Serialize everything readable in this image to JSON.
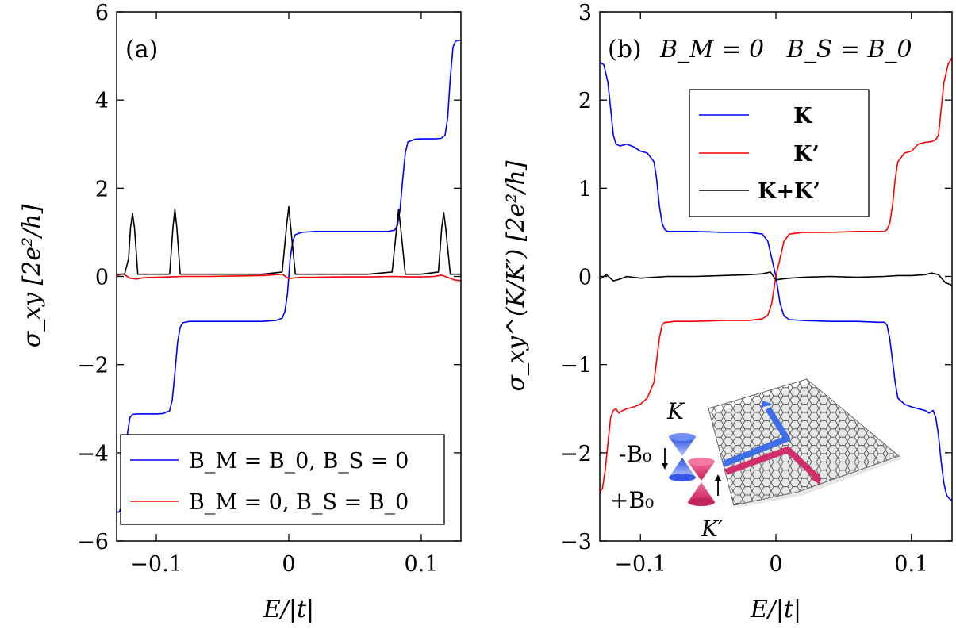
{
  "chart_data": [
    {
      "panel": "(a)",
      "type": "line",
      "title": "",
      "xlabel": "E/|t|",
      "ylabel": "σ_xy [2e²/h]",
      "xlim": [
        -0.13,
        0.13
      ],
      "ylim": [
        -6,
        6
      ],
      "xticks": [
        -0.1,
        0,
        0.1
      ],
      "xtick_labels": [
        "−0.1",
        "0",
        "0.1"
      ],
      "yticks": [
        -6,
        -4,
        -2,
        0,
        2,
        4,
        6
      ],
      "ytick_labels": [
        "−6",
        "−4",
        "−2",
        "0",
        "2",
        "4",
        "6"
      ],
      "grid": false,
      "legend_position": "bottom-right",
      "series": [
        {
          "name": "B_M = B_0, B_S = 0",
          "color": "#0000ff",
          "x": [
            -0.13,
            -0.128,
            -0.126,
            -0.124,
            -0.122,
            -0.12,
            -0.118,
            -0.115,
            -0.11,
            -0.105,
            -0.1,
            -0.095,
            -0.09,
            -0.088,
            -0.086,
            -0.084,
            -0.082,
            -0.08,
            -0.075,
            -0.06,
            -0.04,
            -0.02,
            -0.01,
            -0.005,
            -0.003,
            -0.001,
            0,
            0.001,
            0.003,
            0.005,
            0.01,
            0.02,
            0.04,
            0.06,
            0.075,
            0.08,
            0.082,
            0.084,
            0.086,
            0.088,
            0.09,
            0.095,
            0.1,
            0.105,
            0.11,
            0.115,
            0.118,
            0.12,
            0.122,
            0.124,
            0.126,
            0.128,
            0.13
          ],
          "y": [
            -5.35,
            -5.34,
            -5.2,
            -4.5,
            -3.6,
            -3.2,
            -3.13,
            -3.12,
            -3.12,
            -3.12,
            -3.12,
            -3.11,
            -3.05,
            -2.8,
            -2.2,
            -1.5,
            -1.15,
            -1.05,
            -1.02,
            -1.02,
            -1.02,
            -1.02,
            -1.0,
            -0.95,
            -0.8,
            -0.4,
            0.0,
            0.4,
            0.8,
            0.95,
            1.0,
            1.02,
            1.02,
            1.02,
            1.02,
            1.05,
            1.15,
            1.5,
            2.2,
            2.8,
            3.05,
            3.11,
            3.12,
            3.12,
            3.12,
            3.13,
            3.2,
            3.6,
            4.5,
            5.2,
            5.34,
            5.35,
            5.36
          ]
        },
        {
          "name": "B_M = 0, B_S = B_0",
          "color": "#ff0000",
          "x": [
            -0.13,
            -0.125,
            -0.12,
            -0.115,
            -0.11,
            -0.1,
            -0.09,
            -0.08,
            -0.06,
            -0.04,
            -0.02,
            -0.01,
            -0.005,
            0,
            0.005,
            0.01,
            0.02,
            0.04,
            0.06,
            0.08,
            0.09,
            0.1,
            0.11,
            0.115,
            0.12,
            0.125,
            0.13
          ],
          "y": [
            0.02,
            0.06,
            -0.04,
            -0.06,
            -0.03,
            -0.02,
            -0.01,
            0.0,
            0.0,
            0.01,
            0.02,
            0.04,
            0.05,
            -0.05,
            -0.03,
            -0.02,
            -0.02,
            -0.01,
            -0.01,
            0.0,
            -0.01,
            -0.01,
            0.0,
            0.03,
            -0.02,
            -0.08,
            -0.1
          ]
        },
        {
          "name": "",
          "color": "#000000",
          "x": [
            -0.13,
            -0.124,
            -0.121,
            -0.1195,
            -0.118,
            -0.1165,
            -0.114,
            -0.1,
            -0.09,
            -0.0875,
            -0.086,
            -0.0845,
            -0.082,
            -0.06,
            -0.04,
            -0.02,
            -0.005,
            -0.0015,
            0,
            0.0015,
            0.005,
            0.02,
            0.04,
            0.06,
            0.078,
            0.0815,
            0.083,
            0.0845,
            0.088,
            0.1,
            0.113,
            0.1155,
            0.117,
            0.1185,
            0.122,
            0.13
          ],
          "y": [
            0.05,
            0.05,
            0.4,
            1.1,
            1.43,
            1.1,
            0.05,
            0.05,
            0.05,
            1.1,
            1.52,
            1.1,
            0.05,
            0.05,
            0.05,
            0.05,
            0.1,
            1.2,
            1.58,
            1.1,
            0.05,
            0.05,
            0.05,
            0.05,
            0.1,
            1.1,
            1.52,
            1.1,
            0.05,
            0.05,
            0.1,
            1.1,
            1.45,
            1.1,
            0.05,
            0.05
          ]
        }
      ]
    },
    {
      "panel": "(b)",
      "panel_caption": "B_M = 0   B_S = B_0",
      "type": "line",
      "title": "",
      "xlabel": "E/|t|",
      "ylabel": "σ_xy^(K/K′) [2e²/h]",
      "xlim": [
        -0.13,
        0.13
      ],
      "ylim": [
        -3,
        3
      ],
      "xticks": [
        -0.1,
        0,
        0.1
      ],
      "xtick_labels": [
        "−0.1",
        "0",
        "0.1"
      ],
      "yticks": [
        -3,
        -2,
        -1,
        0,
        1,
        2,
        3
      ],
      "ytick_labels": [
        "−3",
        "−2",
        "−1",
        "0",
        "1",
        "2",
        "3"
      ],
      "grid": false,
      "legend_position": "top-center",
      "series": [
        {
          "name": "K",
          "color": "#0000ff",
          "x": [
            -0.13,
            -0.127,
            -0.124,
            -0.122,
            -0.12,
            -0.118,
            -0.115,
            -0.11,
            -0.105,
            -0.1,
            -0.095,
            -0.09,
            -0.088,
            -0.086,
            -0.084,
            -0.082,
            -0.08,
            -0.075,
            -0.06,
            -0.04,
            -0.02,
            -0.01,
            -0.006,
            -0.003,
            0,
            0.003,
            0.006,
            0.01,
            0.02,
            0.04,
            0.06,
            0.075,
            0.08,
            0.082,
            0.084,
            0.086,
            0.088,
            0.09,
            0.095,
            0.1,
            0.105,
            0.11,
            0.113,
            0.116,
            0.118,
            0.12,
            0.122,
            0.124,
            0.126,
            0.128,
            0.13
          ],
          "y": [
            2.43,
            2.4,
            2.2,
            1.9,
            1.6,
            1.5,
            1.48,
            1.5,
            1.47,
            1.42,
            1.4,
            1.3,
            1.1,
            0.8,
            0.6,
            0.53,
            0.51,
            0.51,
            0.51,
            0.5,
            0.5,
            0.48,
            0.4,
            0.2,
            0.0,
            -0.3,
            -0.45,
            -0.49,
            -0.5,
            -0.51,
            -0.51,
            -0.52,
            -0.52,
            -0.55,
            -0.7,
            -0.95,
            -1.2,
            -1.38,
            -1.45,
            -1.48,
            -1.5,
            -1.52,
            -1.55,
            -1.52,
            -1.6,
            -1.8,
            -2.1,
            -2.35,
            -2.48,
            -2.52,
            -2.54
          ]
        },
        {
          "name": "K’",
          "color": "#ff0000",
          "x": [
            -0.13,
            -0.128,
            -0.126,
            -0.124,
            -0.122,
            -0.12,
            -0.118,
            -0.116,
            -0.113,
            -0.11,
            -0.105,
            -0.1,
            -0.095,
            -0.09,
            -0.088,
            -0.086,
            -0.084,
            -0.082,
            -0.08,
            -0.075,
            -0.06,
            -0.04,
            -0.02,
            -0.01,
            -0.006,
            -0.003,
            0,
            0.003,
            0.006,
            0.01,
            0.02,
            0.04,
            0.06,
            0.075,
            0.08,
            0.082,
            0.084,
            0.086,
            0.088,
            0.09,
            0.095,
            0.1,
            0.105,
            0.11,
            0.115,
            0.118,
            0.12,
            0.122,
            0.124,
            0.127,
            0.13
          ],
          "y": [
            -2.45,
            -2.4,
            -2.2,
            -1.9,
            -1.6,
            -1.52,
            -1.5,
            -1.55,
            -1.52,
            -1.5,
            -1.48,
            -1.45,
            -1.38,
            -1.2,
            -0.95,
            -0.7,
            -0.55,
            -0.52,
            -0.52,
            -0.51,
            -0.51,
            -0.5,
            -0.5,
            -0.48,
            -0.44,
            -0.3,
            0.0,
            0.2,
            0.4,
            0.48,
            0.5,
            0.5,
            0.51,
            0.51,
            0.51,
            0.53,
            0.6,
            0.8,
            1.1,
            1.3,
            1.4,
            1.42,
            1.5,
            1.52,
            1.53,
            1.55,
            1.6,
            1.9,
            2.2,
            2.4,
            2.48
          ]
        },
        {
          "name": "K+K’",
          "color": "#000000",
          "x": [
            -0.13,
            -0.125,
            -0.12,
            -0.115,
            -0.11,
            -0.1,
            -0.09,
            -0.08,
            -0.06,
            -0.04,
            -0.02,
            -0.01,
            -0.004,
            0,
            0.004,
            0.01,
            0.02,
            0.04,
            0.06,
            0.08,
            0.09,
            0.1,
            0.11,
            0.115,
            0.12,
            0.125,
            0.13
          ],
          "y": [
            -0.03,
            0.02,
            -0.05,
            -0.03,
            0.0,
            -0.02,
            -0.01,
            0.0,
            0.0,
            0.01,
            0.02,
            0.03,
            0.05,
            -0.04,
            -0.03,
            -0.02,
            -0.01,
            0.0,
            -0.01,
            0.0,
            0.01,
            0.01,
            0.02,
            0.04,
            0.02,
            -0.07,
            -0.1
          ]
        }
      ],
      "inset_labels": {
        "valley_top": "K",
        "valley_bottom": "K′",
        "field_top": "-B₀",
        "field_bottom": "+B₀"
      }
    }
  ]
}
